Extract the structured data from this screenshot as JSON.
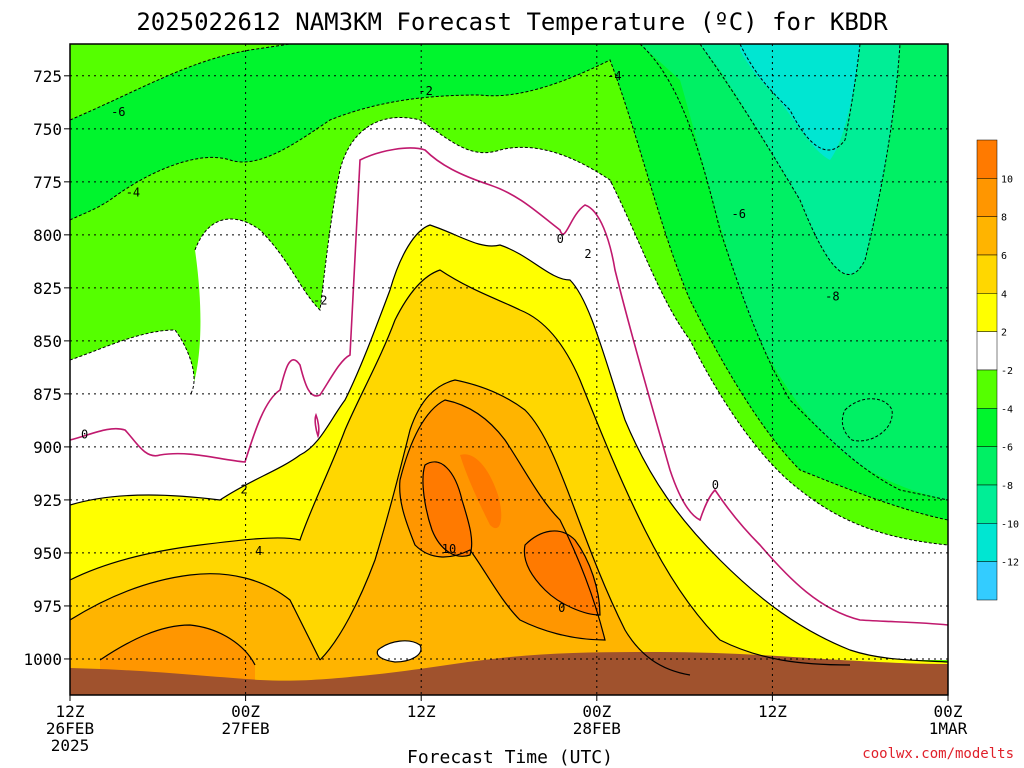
{
  "page": {
    "title": "2025022612 NAM3KM Forecast Temperature (ºC) for KBDR",
    "credit": "coolwx.com/modelts"
  },
  "chart_data": {
    "type": "heatmap",
    "title": "2025022612 NAM3KM Forecast Temperature (ºC) for KBDR",
    "xlabel": "Forecast Time (UTC)",
    "ylabel": "",
    "x_range_hours": [
      0,
      60
    ],
    "x_ticks": [
      {
        "hour": 0,
        "label": [
          "12Z",
          "26FEB",
          "2025"
        ]
      },
      {
        "hour": 12,
        "label": [
          "00Z",
          "27FEB"
        ]
      },
      {
        "hour": 24,
        "label": [
          "12Z"
        ]
      },
      {
        "hour": 36,
        "label": [
          "00Z",
          "28FEB"
        ]
      },
      {
        "hour": 48,
        "label": [
          "12Z"
        ]
      },
      {
        "hour": 60,
        "label": [
          "00Z",
          "1MAR"
        ]
      }
    ],
    "y_range_hPa": [
      1017,
      710
    ],
    "y_ticks": [
      725,
      750,
      775,
      800,
      825,
      850,
      875,
      900,
      925,
      950,
      975,
      1000
    ],
    "grid": true,
    "colorbar": {
      "placement": "right",
      "levels": [
        -14,
        -12,
        -10,
        -8,
        -6,
        -4,
        -2,
        2,
        4,
        6,
        8,
        10,
        12
      ],
      "labels": [
        "-12",
        "-10",
        "-8",
        "-6",
        "-4",
        "-2",
        "2",
        "4",
        "6",
        "8",
        "10"
      ],
      "colors": [
        "#33ccff",
        "#00e6d2",
        "#00ee96",
        "#00f064",
        "#00f52d",
        "#55ff00",
        "#ffffff",
        "#ffff00",
        "#ffd700",
        "#ffb400",
        "#ff9600",
        "#ff7a00"
      ]
    },
    "contour_labels": [
      {
        "text": "-6",
        "hour": 3.3,
        "p": 743
      },
      {
        "text": "-4",
        "hour": 4.3,
        "p": 781
      },
      {
        "text": "-2",
        "hour": 24.3,
        "p": 733
      },
      {
        "text": "-4",
        "hour": 37.2,
        "p": 726
      },
      {
        "text": "-2",
        "hour": 17.1,
        "p": 832
      },
      {
        "text": "0",
        "hour": 1.0,
        "p": 895
      },
      {
        "text": "0",
        "hour": 33.5,
        "p": 803
      },
      {
        "text": "2",
        "hour": 35.4,
        "p": 810
      },
      {
        "text": "2",
        "hour": 11.9,
        "p": 921
      },
      {
        "text": "4",
        "hour": 12.9,
        "p": 950
      },
      {
        "text": "10",
        "hour": 25.9,
        "p": 949
      },
      {
        "text": "0",
        "hour": 33.6,
        "p": 977
      },
      {
        "text": "0",
        "hour": 44.1,
        "p": 919
      },
      {
        "text": "-6",
        "hour": 45.7,
        "p": 791
      },
      {
        "text": "-8",
        "hour": 52.1,
        "p": 830
      }
    ],
    "surface": "terrain below ~1005 hPa shown in brown"
  }
}
